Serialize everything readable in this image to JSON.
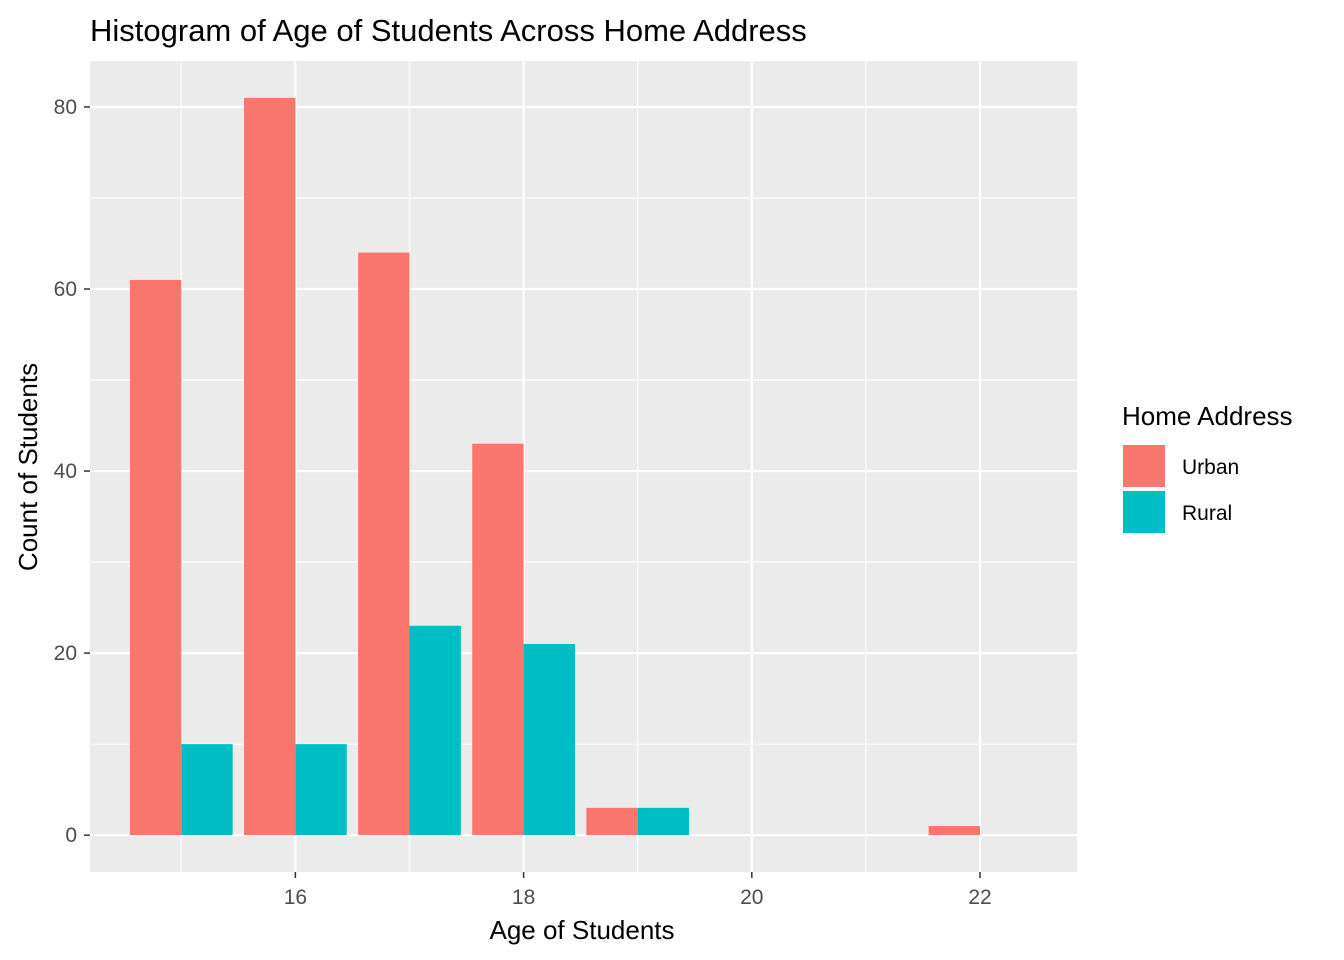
{
  "chart_data": {
    "type": "bar",
    "title": "Histogram of Age of Students Across Home Address",
    "xlabel": "Age of Students",
    "ylabel": "Count of Students",
    "x": [
      15,
      16,
      17,
      18,
      19,
      20,
      21,
      22
    ],
    "series": [
      {
        "name": "Urban",
        "color": "#F8766D",
        "values": [
          61,
          81,
          64,
          43,
          3,
          0,
          0,
          1
        ]
      },
      {
        "name": "Rural",
        "color": "#00BFC4",
        "values": [
          10,
          10,
          23,
          21,
          3,
          0,
          0,
          0
        ]
      }
    ],
    "xlim": [
      14.2,
      22.85
    ],
    "ylim": [
      -4.05,
      85.05
    ],
    "xticks": [
      16,
      18,
      20,
      22
    ],
    "yticks": [
      0,
      20,
      40,
      60,
      80
    ],
    "legend": {
      "title": "Home Address",
      "placement": "right"
    },
    "grid": true,
    "panel_background": "#EBEBEB",
    "grid_color": "#FFFFFF"
  }
}
